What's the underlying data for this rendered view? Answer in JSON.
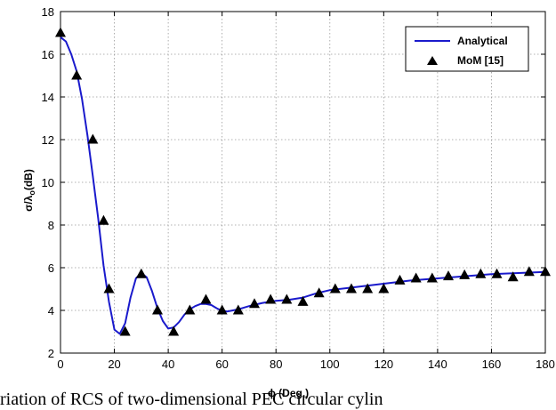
{
  "chart_data": {
    "type": "line",
    "xlabel": "ϕ (Deg.)",
    "ylabel_main": "σ/λ",
    "ylabel_sub": "o",
    "ylabel_tail": "(dB)",
    "xlim": [
      0,
      180
    ],
    "ylim": [
      2,
      18
    ],
    "xticks": [
      0,
      20,
      40,
      60,
      80,
      100,
      120,
      140,
      160,
      180
    ],
    "yticks": [
      2,
      4,
      6,
      8,
      10,
      12,
      14,
      16,
      18
    ],
    "grid": true,
    "legend_position": "top-right",
    "series": [
      {
        "name": "Analytical",
        "style": "line",
        "color": "#1a1acc",
        "x": [
          0,
          2,
          4,
          6,
          8,
          10,
          12,
          14,
          16,
          18,
          20,
          22,
          24,
          26,
          28,
          30,
          32,
          34,
          36,
          38,
          40,
          42,
          44,
          46,
          48,
          50,
          52,
          54,
          56,
          58,
          60,
          62,
          64,
          66,
          70,
          75,
          80,
          85,
          90,
          95,
          100,
          110,
          120,
          130,
          140,
          150,
          160,
          170,
          180
        ],
        "y": [
          16.8,
          16.6,
          16.0,
          15.2,
          13.9,
          12.2,
          10.3,
          8.3,
          6.1,
          4.4,
          3.1,
          2.9,
          3.4,
          4.6,
          5.5,
          5.75,
          5.55,
          4.9,
          4.1,
          3.5,
          3.15,
          3.2,
          3.45,
          3.8,
          4.05,
          4.2,
          4.3,
          4.3,
          4.25,
          4.1,
          3.98,
          3.95,
          4.0,
          4.05,
          4.2,
          4.35,
          4.45,
          4.5,
          4.6,
          4.8,
          4.95,
          5.1,
          5.25,
          5.4,
          5.5,
          5.6,
          5.7,
          5.75,
          5.8
        ]
      },
      {
        "name": "MoM [15]",
        "style": "marker",
        "marker": "triangle",
        "color": "#000000",
        "x": [
          0,
          6,
          12,
          16,
          18,
          24,
          30,
          36,
          42,
          48,
          54,
          60,
          66,
          72,
          78,
          84,
          90,
          96,
          102,
          108,
          114,
          120,
          126,
          132,
          138,
          144,
          150,
          156,
          162,
          168,
          174,
          180
        ],
        "y": [
          17.0,
          15.0,
          12.0,
          8.2,
          5.0,
          3.0,
          5.7,
          4.0,
          3.0,
          4.0,
          4.5,
          4.0,
          4.0,
          4.3,
          4.5,
          4.5,
          4.4,
          4.8,
          5.0,
          5.0,
          5.0,
          5.0,
          5.4,
          5.5,
          5.5,
          5.6,
          5.65,
          5.7,
          5.7,
          5.55,
          5.8,
          5.8
        ]
      }
    ]
  },
  "caption": "riation of RCS of two-dimensional PEC circular cylin"
}
